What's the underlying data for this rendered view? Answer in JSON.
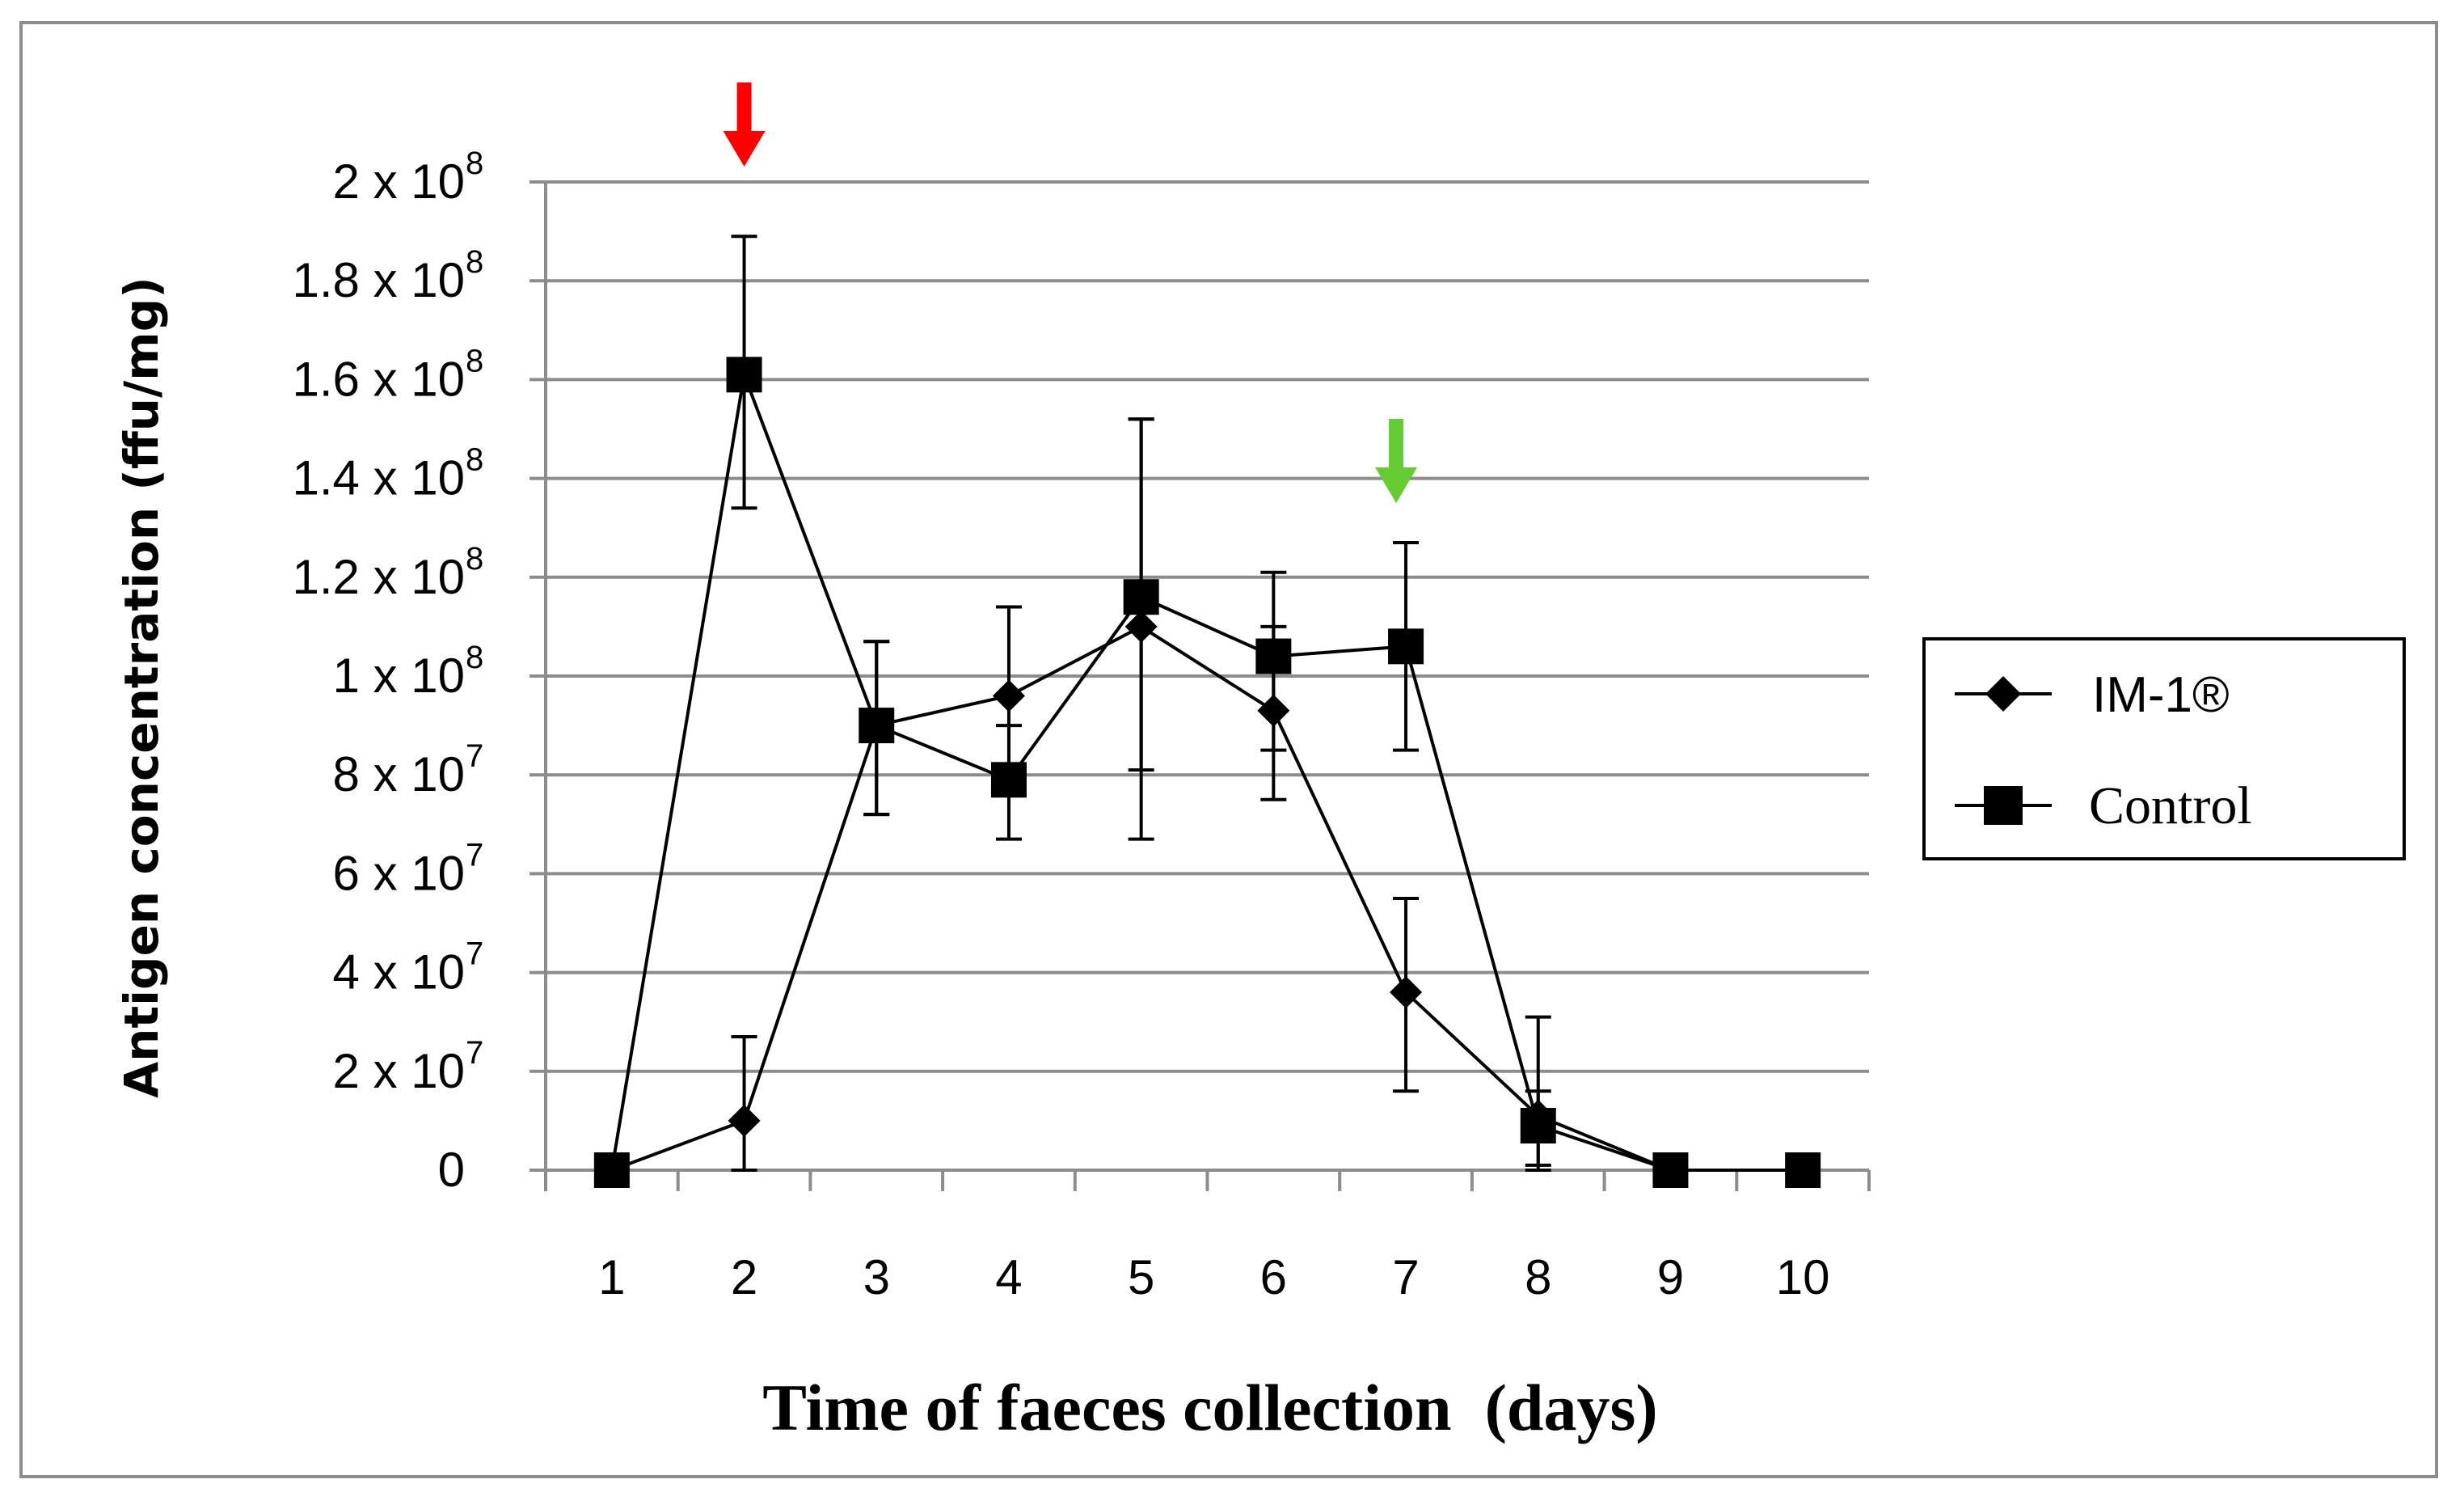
{
  "chart_data": {
    "type": "line",
    "title": "",
    "xlabel": "Time of faeces collection  (days)",
    "ylabel": "Antigen concentration  (ffu/mg)",
    "categories": [
      1,
      2,
      3,
      4,
      5,
      6,
      7,
      8,
      9,
      10
    ],
    "x_tick_labels": [
      "1",
      "2",
      "3",
      "4",
      "5",
      "6",
      "7",
      "8",
      "9",
      "10"
    ],
    "ylim": [
      0,
      200000000
    ],
    "y_ticks": [
      {
        "value": 0,
        "base": "0",
        "exp": ""
      },
      {
        "value": 20000000,
        "base": "2 x 10",
        "exp": "7"
      },
      {
        "value": 40000000,
        "base": "4 x 10",
        "exp": "7"
      },
      {
        "value": 60000000,
        "base": "6 x 10",
        "exp": "7"
      },
      {
        "value": 80000000,
        "base": "8 x 10",
        "exp": "7"
      },
      {
        "value": 100000000,
        "base": "1 x 10",
        "exp": "8"
      },
      {
        "value": 120000000,
        "base": "1.2 x 10",
        "exp": "8"
      },
      {
        "value": 140000000,
        "base": "1.4 x 10",
        "exp": "8"
      },
      {
        "value": 160000000,
        "base": "1.6 x 10",
        "exp": "8"
      },
      {
        "value": 180000000,
        "base": "1.8 x 10",
        "exp": "8"
      },
      {
        "value": 200000000,
        "base": "2 x 10",
        "exp": "8"
      }
    ],
    "grid": "horizontal",
    "legend": "right",
    "series": [
      {
        "name": "IM-1®",
        "marker": "diamond",
        "values": [
          0,
          10000000,
          90000000,
          96000000,
          110000000,
          93000000,
          36000000,
          11000000,
          0,
          0
        ],
        "error_upper": [
          0,
          27000000,
          107000000,
          114000000,
          152000000,
          121000000,
          55000000,
          16000000,
          0,
          0
        ],
        "error_lower": [
          0,
          0,
          72000000,
          80000000,
          67000000,
          75000000,
          16000000,
          0,
          0,
          0
        ]
      },
      {
        "name": "Control",
        "marker": "square",
        "values": [
          0,
          161000000,
          90000000,
          79000000,
          116000000,
          104000000,
          106000000,
          9000000,
          0,
          0
        ],
        "error_upper": [
          0,
          189000000,
          107000000,
          90000000,
          152000000,
          110000000,
          127000000,
          31000000,
          0,
          0
        ],
        "error_lower": [
          0,
          134000000,
          72000000,
          67000000,
          81000000,
          85000000,
          85000000,
          1000000,
          0,
          0
        ]
      }
    ],
    "annotations": [
      {
        "type": "arrow",
        "color": "#ff0000",
        "at_day": 2
      },
      {
        "type": "arrow",
        "color": "#66cc33",
        "at_day": 7
      }
    ]
  }
}
